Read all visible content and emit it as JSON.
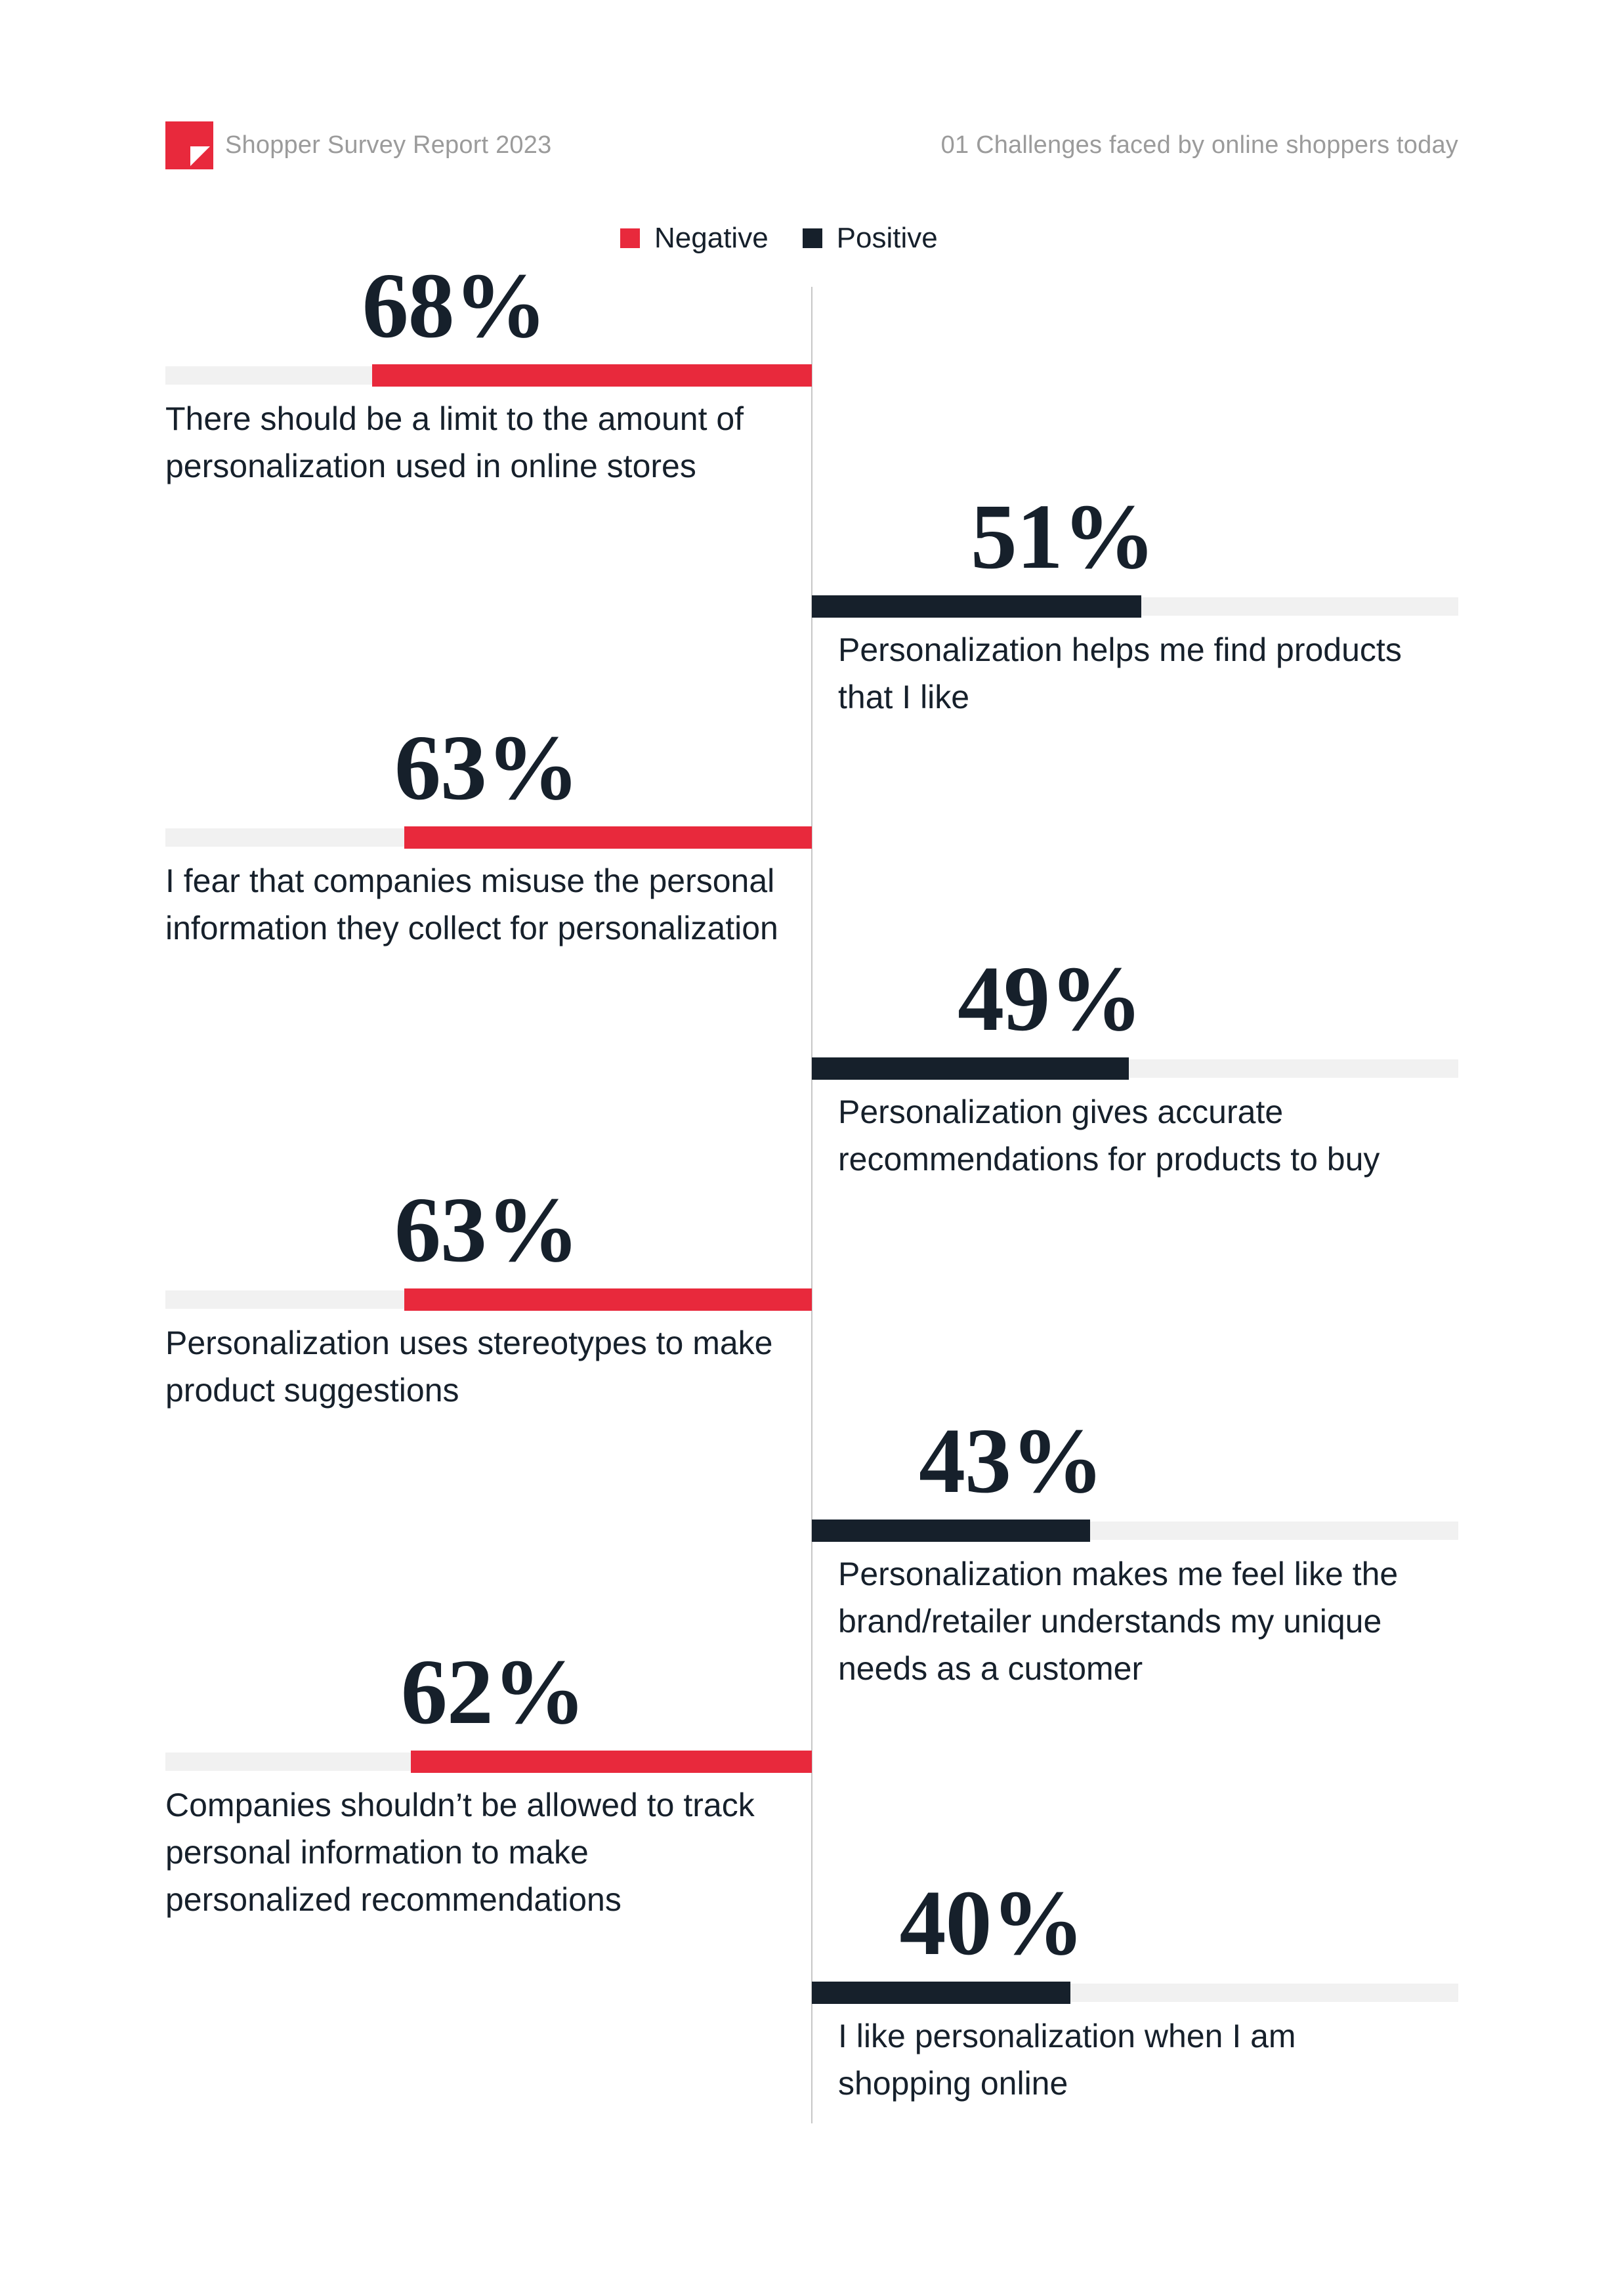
{
  "theme": {
    "negative_red": "#E8293C",
    "positive_dark": "#16202B",
    "track_gray": "#F1F1F1",
    "header_gray": "#9B9B9B",
    "axis_line_gray": "#C7C7C7",
    "background": "#FFFFFF"
  },
  "header": {
    "brand": "Shopper Survey Report 2023",
    "section": "01 Challenges faced by online shoppers today"
  },
  "legend": {
    "negative": {
      "label": "Negative"
    },
    "positive": {
      "label": "Positive"
    }
  },
  "icons": {
    "logo": "red-square-folded-corner"
  },
  "chart_data": {
    "type": "bar",
    "variant": "diverging-horizontal",
    "unit": "%",
    "axis_range": [
      0,
      100
    ],
    "grid": false,
    "legend_position": "top-center",
    "series": [
      {
        "name": "Negative",
        "color": "#E8293C",
        "side": "left"
      },
      {
        "name": "Positive",
        "color": "#16202B",
        "side": "right"
      }
    ],
    "items": [
      {
        "value": 68,
        "series": "Negative",
        "label": "There should be a limit to the amount of personalization used in online stores"
      },
      {
        "value": 51,
        "series": "Positive",
        "label": "Personalization helps me find products that I like"
      },
      {
        "value": 63,
        "series": "Negative",
        "label": "I fear that companies misuse the personal information they collect for personalization"
      },
      {
        "value": 49,
        "series": "Positive",
        "label": "Personalization gives accurate recommendations for products to buy"
      },
      {
        "value": 63,
        "series": "Negative",
        "label": "Personalization uses stereotypes to make product suggestions"
      },
      {
        "value": 43,
        "series": "Positive",
        "label": "Personalization makes me feel like the brand/retailer understands my unique needs as a customer"
      },
      {
        "value": 62,
        "series": "Negative",
        "label": "Companies shouldn’t be allowed to track personal information to make personalized recommendations"
      },
      {
        "value": 40,
        "series": "Positive",
        "label": "I like personalization when I am shopping online"
      }
    ]
  }
}
